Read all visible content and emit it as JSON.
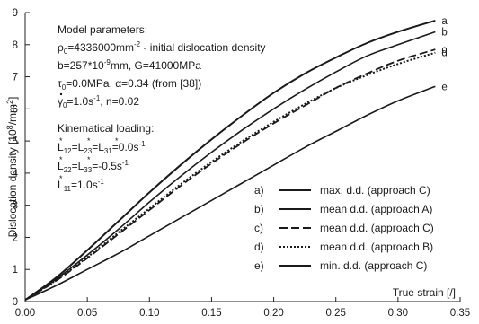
{
  "chart_data": {
    "type": "line",
    "xlabel": "True strain [/]",
    "ylabel": "Dislocation density [10^8/mm^2]",
    "ylabel_parts": {
      "main": "Dislocation density [10",
      "exp1": "8",
      "mid": "/mm",
      "exp2": "2",
      "end": "]"
    },
    "xlim": [
      0,
      0.35
    ],
    "ylim": [
      0,
      9
    ],
    "xticks": [
      "0.00",
      "0.05",
      "0.10",
      "0.15",
      "0.20",
      "0.25",
      "0.30",
      "0.35"
    ],
    "yticks": [
      "0",
      "1",
      "2",
      "3",
      "4",
      "5",
      "6",
      "7",
      "8",
      "9"
    ],
    "grid": false,
    "series": [
      {
        "name": "max. d.d. (approach C)",
        "key": "a",
        "style": "solid",
        "width": 2,
        "x": [
          0,
          0.025,
          0.05,
          0.075,
          0.1,
          0.125,
          0.15,
          0.175,
          0.2,
          0.225,
          0.25,
          0.275,
          0.3,
          0.33
        ],
        "y": [
          0.05,
          0.75,
          1.6,
          2.5,
          3.4,
          4.25,
          5.05,
          5.8,
          6.5,
          7.1,
          7.6,
          8.05,
          8.4,
          8.75
        ]
      },
      {
        "name": "mean d.d. (approach A)",
        "key": "b",
        "style": "solid",
        "width": 1.6,
        "x": [
          0,
          0.025,
          0.05,
          0.075,
          0.1,
          0.125,
          0.15,
          0.175,
          0.2,
          0.225,
          0.25,
          0.275,
          0.3,
          0.33
        ],
        "y": [
          0.05,
          0.7,
          1.45,
          2.25,
          3.1,
          3.9,
          4.65,
          5.35,
          6.0,
          6.6,
          7.15,
          7.65,
          8.0,
          8.4
        ]
      },
      {
        "name": "mean d.d. (approach C)",
        "key": "c",
        "style": "dashed",
        "width": 1.8,
        "x": [
          0,
          0.025,
          0.05,
          0.075,
          0.1,
          0.125,
          0.15,
          0.175,
          0.2,
          0.225,
          0.25,
          0.275,
          0.3,
          0.33
        ],
        "y": [
          0.05,
          0.65,
          1.35,
          2.1,
          2.85,
          3.6,
          4.3,
          4.95,
          5.55,
          6.1,
          6.65,
          7.1,
          7.5,
          7.85
        ]
      },
      {
        "name": "mean d.d. (approach B)",
        "key": "d",
        "style": "dotted",
        "width": 2,
        "x": [
          0,
          0.025,
          0.05,
          0.075,
          0.1,
          0.125,
          0.15,
          0.175,
          0.2,
          0.225,
          0.25,
          0.275,
          0.3,
          0.33
        ],
        "y": [
          0.05,
          0.67,
          1.38,
          2.15,
          2.9,
          3.65,
          4.35,
          5.0,
          5.6,
          6.15,
          6.65,
          7.05,
          7.4,
          7.75
        ]
      },
      {
        "name": "min. d.d. (approach C)",
        "key": "e",
        "style": "solid",
        "width": 1.6,
        "x": [
          0,
          0.025,
          0.05,
          0.075,
          0.1,
          0.125,
          0.15,
          0.175,
          0.2,
          0.225,
          0.25,
          0.275,
          0.3,
          0.33
        ],
        "y": [
          0.05,
          0.5,
          1.0,
          1.5,
          2.05,
          2.6,
          3.15,
          3.7,
          4.25,
          4.8,
          5.3,
          5.8,
          6.25,
          6.7
        ]
      }
    ],
    "legend": {
      "placement": "bottom-right",
      "entries": [
        {
          "key": "a)",
          "label": "max. d.d. (approach C)",
          "style": "solid"
        },
        {
          "key": "b)",
          "label": "mean d.d. (approach A)",
          "style": "solid"
        },
        {
          "key": "c)",
          "label": "mean d.d. (approach C)",
          "style": "dashed"
        },
        {
          "key": "d)",
          "label": "mean d.d. (approach B)",
          "style": "dotted"
        },
        {
          "key": "e)",
          "label": "min. d.d. (approach C)",
          "style": "solid"
        }
      ]
    },
    "annotation": {
      "heading1": "Model parameters:",
      "rho_sym": "ρ",
      "rho_rest": "=4336000mm",
      "rho_exp": "-2",
      "rho_desc": " - initial dislocation density",
      "b_pre": "b=257*10",
      "b_exp": "-9",
      "b_post": "mm, G=41000MPa",
      "tau_sym": "τ",
      "tau_rest": "=0.0MPa, α=0.34 (from [38])",
      "gamma_sym": "γ",
      "gamma_rest": "=1.0s",
      "gamma_exp": "-1",
      "gamma_post": ", n=0.02",
      "heading2": "Kinematical loading:",
      "L1": "L",
      "L1_sub1": "12",
      "L1_mid1": "=L",
      "L1_sub2": "23",
      "L1_mid2": "=L",
      "L1_sub3": "31",
      "L1_val": "=0.0s",
      "L1_exp": "-1",
      "L2": "L",
      "L2_sub1": "22",
      "L2_mid1": "=L",
      "L2_sub2": "33",
      "L2_val": "=-0.5s",
      "L2_exp": "-1",
      "L3": "L",
      "L3_sub1": "11",
      "L3_val": "=1.0s",
      "L3_exp": "-1",
      "sub0": "0",
      "star": "*"
    }
  }
}
